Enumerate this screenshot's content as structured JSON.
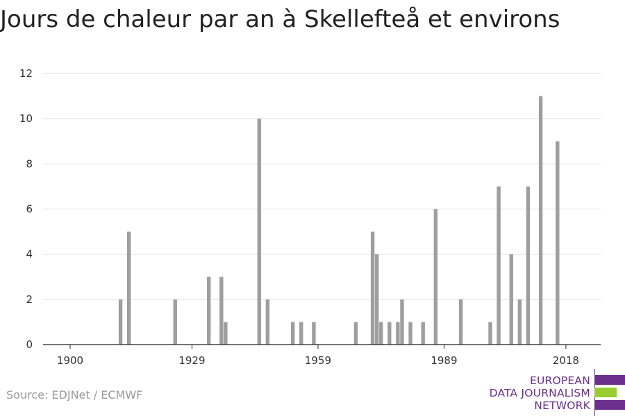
{
  "title": "Jours de chaleur par an à Skellefteå et environs",
  "source": "Source: EDJNet / ECMWF",
  "logo": {
    "line1": "EUROPEAN",
    "line2": "DATA JOURNALISM",
    "line3": "NETWORK",
    "colors": {
      "purple": "#6b2f8e",
      "green": "#9acd32"
    }
  },
  "chart_data": {
    "type": "bar",
    "title": "Jours de chaleur par an à Skellefteå et environs",
    "xlabel": "",
    "ylabel": "",
    "xlim": [
      1900,
      2020
    ],
    "ylim": [
      0,
      12
    ],
    "x_ticks": [
      "1900",
      "1929",
      "1959",
      "1989",
      "2018"
    ],
    "y_ticks": [
      "0",
      "2",
      "4",
      "6",
      "8",
      "10",
      "12"
    ],
    "grid": true,
    "bar_color": "#9e9e9e",
    "x": [
      1912,
      1914,
      1925,
      1933,
      1936,
      1937,
      1945,
      1947,
      1953,
      1955,
      1958,
      1968,
      1972,
      1973,
      1974,
      1976,
      1978,
      1979,
      1981,
      1984,
      1987,
      1993,
      2000,
      2002,
      2005,
      2007,
      2009,
      2012,
      2016
    ],
    "values": [
      2,
      5,
      2,
      3,
      3,
      1,
      10,
      2,
      1,
      1,
      1,
      1,
      5,
      4,
      1,
      1,
      1,
      2,
      1,
      1,
      6,
      2,
      1,
      7,
      4,
      2,
      7,
      11,
      9
    ]
  }
}
